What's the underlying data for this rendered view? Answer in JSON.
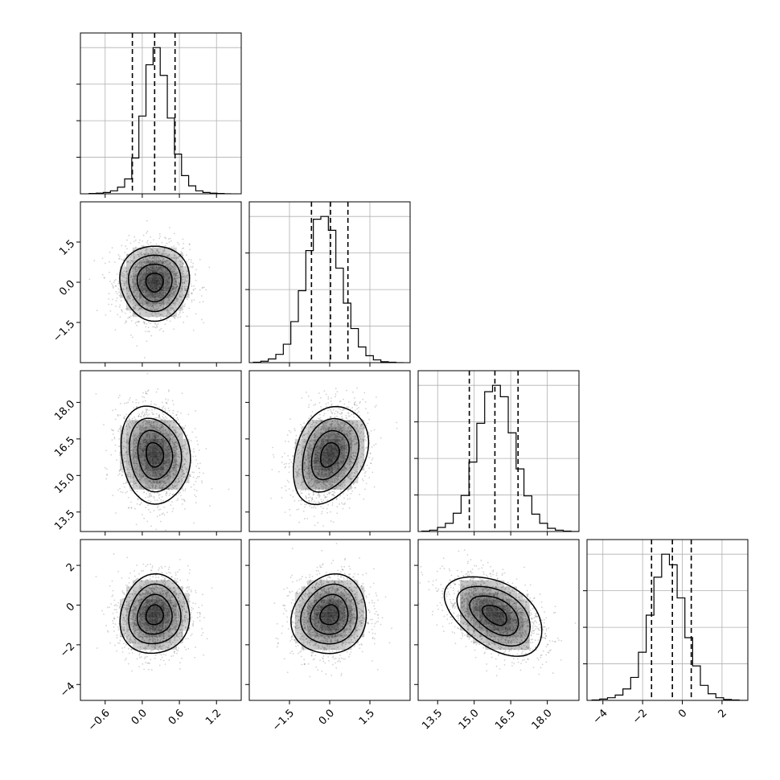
{
  "chart_data": {
    "type": "corner",
    "title": "",
    "parameters": [
      {
        "range": [
          -1.0,
          1.6
        ],
        "ticks": [
          -0.6,
          0.0,
          0.6,
          1.2
        ],
        "tick_labels": [
          "−0.6",
          "0.0",
          "0.6",
          "1.2"
        ]
      },
      {
        "range": [
          -3.0,
          3.0
        ],
        "ticks": [
          -1.5,
          0.0,
          1.5
        ],
        "tick_labels": [
          "−1.5",
          "0.0",
          "1.5"
        ]
      },
      {
        "range": [
          12.7,
          19.3
        ],
        "ticks": [
          13.5,
          15.0,
          16.5,
          18.0
        ],
        "tick_labels": [
          "13.5",
          "15.0",
          "16.5",
          "18.0"
        ]
      },
      {
        "range": [
          -4.8,
          3.3
        ],
        "ticks": [
          -4,
          -2,
          0,
          2
        ],
        "tick_labels": [
          "−4",
          "−2",
          "0",
          "2"
        ]
      }
    ],
    "histograms": [
      {
        "edges_range": [
          -0.86,
          1.44
        ],
        "bins": 20,
        "counts": [
          1,
          2,
          4,
          9,
          20,
          45,
          108,
          235,
          390,
          442,
          358,
          229,
          120,
          55,
          24,
          9,
          4,
          2,
          1,
          0
        ],
        "quantiles": [
          -0.16,
          0.2,
          0.53
        ]
      },
      {
        "edges_range": [
          -2.85,
          2.75
        ],
        "bins": 20,
        "counts": [
          1,
          3,
          8,
          18,
          40,
          89,
          156,
          243,
          311,
          317,
          287,
          205,
          129,
          74,
          34,
          15,
          6,
          2,
          1,
          0
        ],
        "quantiles": [
          -0.68,
          0.03,
          0.68
        ]
      },
      {
        "edges_range": [
          12.85,
          19.3
        ],
        "bins": 20,
        "counts": [
          1,
          3,
          9,
          18,
          40,
          79,
          152,
          237,
          306,
          320,
          295,
          216,
          137,
          78,
          38,
          18,
          7,
          3,
          1,
          0
        ],
        "quantiles": [
          14.8,
          15.85,
          16.8
        ]
      },
      {
        "edges_range": [
          -4.55,
          3.25
        ],
        "bins": 20,
        "counts": [
          1,
          3,
          6,
          12,
          26,
          52,
          109,
          193,
          279,
          331,
          307,
          232,
          142,
          78,
          34,
          15,
          6,
          2,
          1,
          0
        ],
        "quantiles": [
          -1.55,
          -0.5,
          0.45
        ]
      }
    ],
    "pairs": [
      {
        "row": 1,
        "col": 0,
        "center": [
          0.2,
          0.0
        ],
        "sigma": [
          0.28,
          0.7
        ],
        "rho": 0.0
      },
      {
        "row": 2,
        "col": 0,
        "center": [
          0.2,
          15.85
        ],
        "sigma": [
          0.28,
          1.0
        ],
        "rho": -0.12
      },
      {
        "row": 2,
        "col": 1,
        "center": [
          0.0,
          15.85
        ],
        "sigma": [
          0.7,
          1.0
        ],
        "rho": 0.28
      },
      {
        "row": 3,
        "col": 0,
        "center": [
          0.2,
          -0.5
        ],
        "sigma": [
          0.28,
          1.0
        ],
        "rho": 0.05
      },
      {
        "row": 3,
        "col": 1,
        "center": [
          0.0,
          -0.5
        ],
        "sigma": [
          0.7,
          1.0
        ],
        "rho": 0.1
      },
      {
        "row": 3,
        "col": 2,
        "center": [
          15.85,
          -0.5
        ],
        "sigma": [
          1.0,
          1.0
        ],
        "rho": -0.45
      }
    ],
    "contour_levels_sigma": [
      0.5,
      1.0,
      1.5,
      2.0
    ],
    "grid": true,
    "colors": {
      "line": "#000000",
      "grid": "#b0b0b0",
      "points": "#7f7f7f",
      "density": "#000000"
    }
  }
}
